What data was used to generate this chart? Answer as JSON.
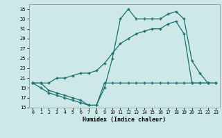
{
  "title": "",
  "xlabel": "Humidex (Indice chaleur)",
  "bg_color": "#cce8e8",
  "grid_color": "#b8d4d4",
  "line_color": "#1a6e6a",
  "xlim": [
    -0.5,
    23.5
  ],
  "ylim": [
    15,
    36
  ],
  "xticks": [
    0,
    1,
    2,
    3,
    4,
    5,
    6,
    7,
    8,
    9,
    10,
    11,
    12,
    13,
    14,
    15,
    16,
    17,
    18,
    19,
    20,
    21,
    22,
    23
  ],
  "yticks": [
    15,
    17,
    19,
    21,
    23,
    25,
    27,
    29,
    31,
    33,
    35
  ],
  "series1_x": [
    0,
    1,
    2,
    3,
    4,
    5,
    6,
    7,
    8,
    9,
    10,
    11,
    12,
    13,
    14,
    15,
    16,
    17,
    18,
    19,
    20,
    21,
    22
  ],
  "series1_y": [
    20,
    19,
    18,
    17.5,
    17,
    16.5,
    16,
    15.5,
    15.5,
    19,
    25,
    33,
    35,
    33,
    33,
    33,
    33,
    34,
    34.5,
    33,
    24.5,
    22,
    20
  ],
  "series2_x": [
    0,
    1,
    2,
    3,
    4,
    5,
    6,
    7,
    8,
    9,
    10,
    11,
    12,
    13,
    14,
    15,
    16,
    17,
    18,
    19,
    20,
    21,
    22,
    23
  ],
  "series2_y": [
    20,
    20,
    20,
    21,
    21,
    21.5,
    22,
    22,
    22.5,
    24,
    26,
    28,
    29,
    30,
    30.5,
    31,
    31,
    32,
    32.5,
    30,
    20,
    20,
    20,
    20
  ],
  "series3_x": [
    0,
    1,
    2,
    3,
    4,
    5,
    6,
    7,
    8,
    9,
    10,
    11,
    12,
    13,
    14,
    15,
    16,
    17,
    18,
    19,
    20,
    21,
    22,
    23
  ],
  "series3_y": [
    20,
    20,
    18.5,
    18,
    17.5,
    17,
    16.5,
    15.5,
    15.5,
    20,
    20,
    20,
    20,
    20,
    20,
    20,
    20,
    20,
    20,
    20,
    20,
    20,
    20,
    20
  ]
}
